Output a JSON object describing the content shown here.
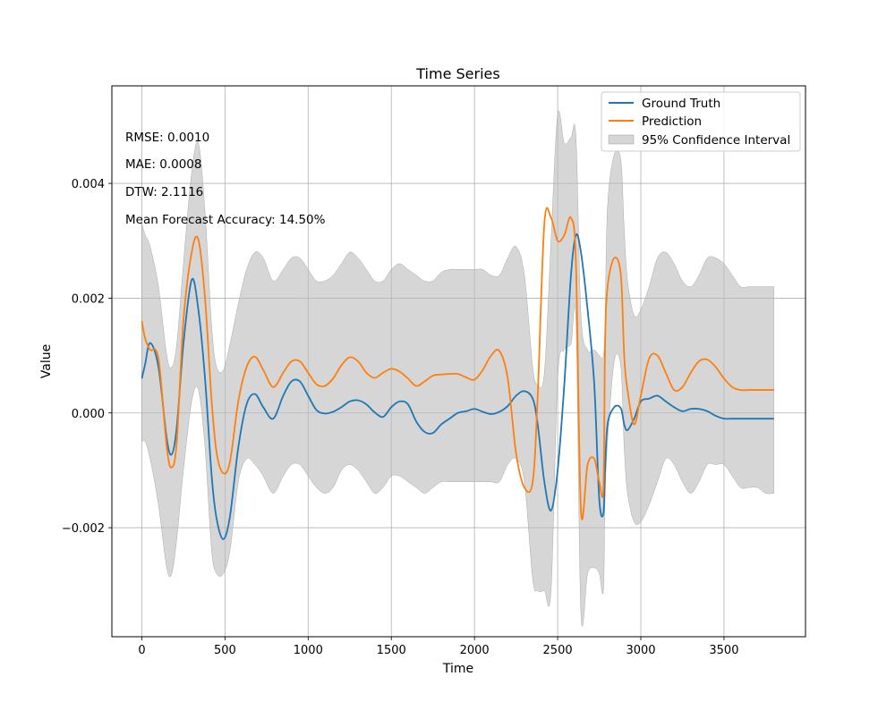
{
  "chart_data": {
    "type": "line",
    "title": "Time Series",
    "xlabel": "Time",
    "ylabel": "Value",
    "xlim": [
      -180,
      3990
    ],
    "ylim": [
      -0.0039,
      0.0057
    ],
    "grid": true,
    "legend_position": "upper-right",
    "x_ticks": [
      0,
      500,
      1000,
      1500,
      2000,
      2500,
      3000,
      3500
    ],
    "x_tick_labels": [
      "0",
      "500",
      "1000",
      "1500",
      "2000",
      "2500",
      "3000",
      "3500"
    ],
    "y_ticks": [
      -0.002,
      0.0,
      0.002,
      0.004
    ],
    "y_tick_labels": [
      "−0.002",
      "0.000",
      "0.002",
      "0.004"
    ],
    "annotations": [
      "RMSE: 0.0010",
      "MAE: 0.0008",
      "DTW: 2.1116",
      "Mean Forecast Accuracy: 14.50%"
    ],
    "x": [
      0,
      20,
      50,
      100,
      150,
      180,
      210,
      250,
      300,
      340,
      380,
      420,
      450,
      490,
      530,
      580,
      630,
      680,
      730,
      790,
      850,
      900,
      950,
      1000,
      1050,
      1100,
      1150,
      1200,
      1250,
      1300,
      1350,
      1400,
      1450,
      1500,
      1550,
      1600,
      1650,
      1700,
      1750,
      1800,
      1850,
      1900,
      1950,
      2000,
      2050,
      2100,
      2150,
      2200,
      2250,
      2300,
      2350,
      2380,
      2420,
      2460,
      2500,
      2540,
      2580,
      2610,
      2640,
      2680,
      2720,
      2750,
      2775,
      2785,
      2800,
      2840,
      2880,
      2900,
      2920,
      2960,
      3000,
      3050,
      3100,
      3150,
      3200,
      3250,
      3300,
      3350,
      3400,
      3450,
      3500,
      3550,
      3600,
      3650,
      3700,
      3750,
      3800
    ],
    "series": [
      {
        "name": "Ground Truth",
        "color": "#1f77b4",
        "values": [
          0.0006,
          0.00085,
          0.00122,
          0.0008,
          -0.00045,
          -0.00072,
          -0.00025,
          0.0012,
          0.00232,
          0.0018,
          0.0006,
          -0.0011,
          -0.00185,
          -0.0022,
          -0.0018,
          -0.0006,
          0.00015,
          0.00033,
          0.0001,
          -0.0001,
          0.0003,
          0.00055,
          0.00055,
          0.0003,
          5e-05,
          -1e-05,
          2e-05,
          0.0001,
          0.0002,
          0.00022,
          0.00015,
          1e-05,
          -7e-05,
          0.0001,
          0.0002,
          0.00015,
          -0.00015,
          -0.00033,
          -0.00035,
          -0.0002,
          -0.0001,
          0.0,
          3e-05,
          7e-05,
          2e-05,
          -2e-05,
          2e-05,
          0.00012,
          0.0003,
          0.00038,
          0.00025,
          -0.0002,
          -0.0012,
          -0.0017,
          -0.001,
          0.0005,
          0.0024,
          0.0031,
          0.0028,
          0.0018,
          0.0005,
          -0.0015,
          -0.00175,
          -0.001,
          -0.0002,
          0.0001,
          8e-05,
          -0.0002,
          -0.0003,
          -0.0001,
          0.0002,
          0.00025,
          0.0003,
          0.0002,
          0.0001,
          3e-05,
          7e-05,
          7e-05,
          3e-05,
          -5e-05,
          -0.0001,
          -0.0001,
          -0.0001,
          -0.0001,
          -0.0001,
          -0.0001,
          -0.0001
        ]
      },
      {
        "name": "Prediction",
        "color": "#ff7f0e",
        "values": [
          0.0016,
          0.0013,
          0.0011,
          0.00095,
          -0.0006,
          -0.00095,
          -0.0005,
          0.0016,
          0.0028,
          0.00302,
          0.002,
          0.0002,
          -0.0007,
          -0.00105,
          -0.00085,
          0.0002,
          0.0008,
          0.00098,
          0.00075,
          0.00045,
          0.0007,
          0.0009,
          0.0009,
          0.0007,
          0.0005,
          0.00047,
          0.0006,
          0.00083,
          0.00097,
          0.0009,
          0.0007,
          0.00061,
          0.0007,
          0.00077,
          0.00072,
          0.0006,
          0.00047,
          0.00055,
          0.00065,
          0.00067,
          0.00068,
          0.00068,
          0.00062,
          0.00058,
          0.00075,
          0.001,
          0.00108,
          0.0006,
          -0.0007,
          -0.0013,
          -0.0012,
          0.0003,
          0.0033,
          0.0034,
          0.003,
          0.0031,
          0.0034,
          0.0026,
          -0.0017,
          -0.0009,
          -0.0008,
          -0.0012,
          -0.0013,
          0.0012,
          0.0022,
          0.0027,
          0.0024,
          0.001,
          0.0004,
          -0.0002,
          0.0003,
          0.00095,
          0.001,
          0.0007,
          0.0004,
          0.00045,
          0.0007,
          0.0009,
          0.00093,
          0.0008,
          0.0006,
          0.00045,
          0.0004,
          0.0004,
          0.0004,
          0.0004,
          0.0004
        ]
      }
    ],
    "band": {
      "name": "95% Confidence Interval",
      "color": "#bbbbbb",
      "upper": [
        0.0033,
        0.0031,
        0.0029,
        0.0022,
        0.001,
        0.0008,
        0.0012,
        0.0026,
        0.0042,
        0.0047,
        0.0035,
        0.0015,
        0.0008,
        0.00075,
        0.0012,
        0.0019,
        0.0025,
        0.0028,
        0.0027,
        0.0023,
        0.0025,
        0.0027,
        0.0027,
        0.0025,
        0.0023,
        0.0023,
        0.0024,
        0.0026,
        0.0028,
        0.0027,
        0.0025,
        0.0023,
        0.0023,
        0.0025,
        0.0026,
        0.0025,
        0.0024,
        0.0023,
        0.0023,
        0.00245,
        0.0025,
        0.0025,
        0.0025,
        0.0025,
        0.0025,
        0.0024,
        0.0024,
        0.0027,
        0.0029,
        0.0024,
        0.0008,
        0.0005,
        0.0007,
        0.003,
        0.0052,
        0.0047,
        0.0048,
        0.0048,
        0.0017,
        0.0011,
        0.0011,
        0.001,
        0.001,
        0.0016,
        0.0036,
        0.0045,
        0.0044,
        0.0032,
        0.0023,
        0.0017,
        0.0018,
        0.0022,
        0.0027,
        0.0028,
        0.0026,
        0.0023,
        0.0022,
        0.0024,
        0.0027,
        0.0027,
        0.0026,
        0.0024,
        0.0022,
        0.0022,
        0.0022,
        0.0022,
        0.0022
      ],
      "lower": [
        -0.0005,
        -0.0005,
        -0.0008,
        -0.0016,
        -0.0027,
        -0.0028,
        -0.0022,
        -0.001,
        0.0002,
        0.0004,
        -0.0006,
        -0.0024,
        -0.0028,
        -0.0028,
        -0.0024,
        -0.0012,
        -0.0008,
        -0.0009,
        -0.0011,
        -0.0014,
        -0.0011,
        -0.0009,
        -0.0009,
        -0.0011,
        -0.0013,
        -0.0014,
        -0.0013,
        -0.001,
        -0.0009,
        -0.001,
        -0.0012,
        -0.0014,
        -0.0013,
        -0.0011,
        -0.0011,
        -0.0012,
        -0.0013,
        -0.0014,
        -0.0013,
        -0.0012,
        -0.0012,
        -0.0012,
        -0.0012,
        -0.0012,
        -0.0012,
        -0.0012,
        -0.0012,
        -0.0009,
        -0.0008,
        -0.0012,
        -0.0029,
        -0.0031,
        -0.0031,
        -0.0031,
        0.0006,
        0.0011,
        0.0012,
        0.0016,
        -0.0035,
        -0.0028,
        -0.0027,
        -0.0028,
        -0.0031,
        -0.0015,
        -0.0005,
        0.0009,
        0.0008,
        -0.0006,
        -0.0014,
        -0.0019,
        -0.0019,
        -0.0016,
        -0.0012,
        -0.0008,
        -0.0009,
        -0.0012,
        -0.0014,
        -0.0012,
        -0.0009,
        -0.0009,
        -0.0009,
        -0.0011,
        -0.0013,
        -0.0013,
        -0.0013,
        -0.0014,
        -0.0014
      ]
    }
  }
}
